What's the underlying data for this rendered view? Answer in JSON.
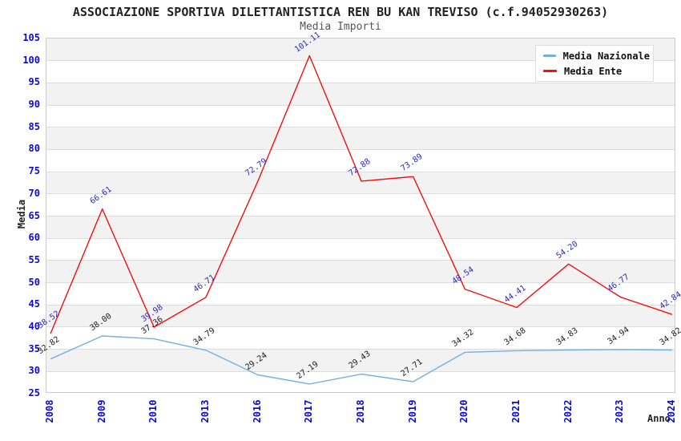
{
  "chart_data": {
    "type": "line",
    "title": "ASSOCIAZIONE SPORTIVA DILETTANTISTICA REN BU KAN TREVISO (c.f.94052930263)",
    "subtitle": "Media Importi",
    "xlabel": "Anno",
    "ylabel": "Media",
    "categories": [
      "2008",
      "2009",
      "2010",
      "2013",
      "2016",
      "2017",
      "2018",
      "2019",
      "2020",
      "2021",
      "2022",
      "2023",
      "2024"
    ],
    "series": [
      {
        "name": "Media Nazionale",
        "color": "#78afe1",
        "label_color": "#1a1a1a",
        "values": [
          32.82,
          38.0,
          37.36,
          34.79,
          29.24,
          27.19,
          29.43,
          27.71,
          34.32,
          34.68,
          34.83,
          34.94,
          34.82
        ]
      },
      {
        "name": "Media Ente",
        "color": "#ee1111",
        "label_color": "#2929b8",
        "values": [
          38.52,
          66.61,
          39.98,
          46.71,
          72.79,
          101.11,
          72.88,
          73.89,
          48.54,
          44.41,
          54.2,
          46.77,
          42.84
        ]
      }
    ],
    "ylim": [
      25,
      105
    ],
    "ytick_step": 5,
    "value_label_decimals": 2,
    "legend_position": "top-right",
    "grid": true,
    "style": {
      "band_fill": "#f2f2f2",
      "grid_line": "#dddddd",
      "plot_border": "#cccccc",
      "tick_label": "#0b0bcc"
    }
  }
}
